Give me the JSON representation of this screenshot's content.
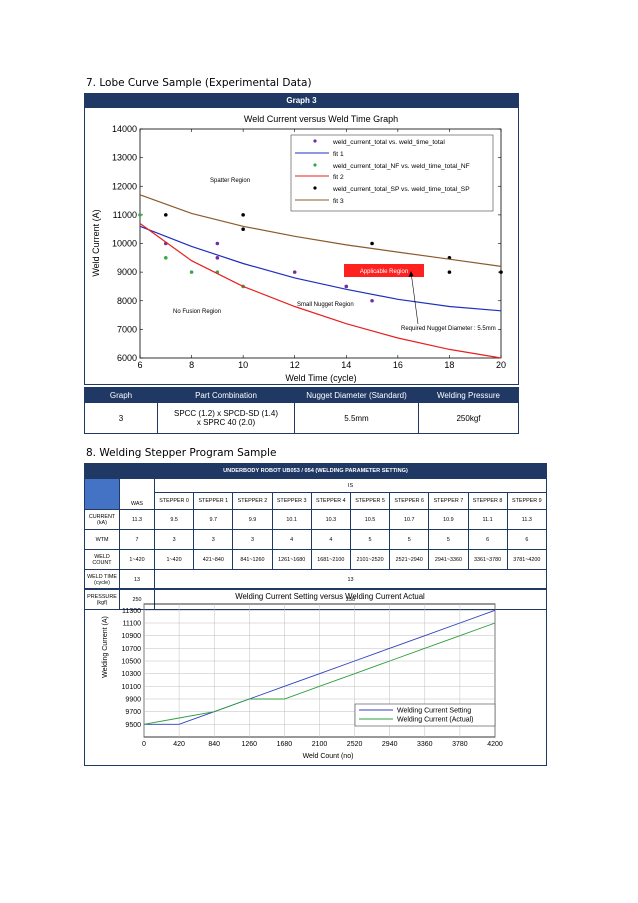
{
  "section7": {
    "title": "7.   Lobe Curve Sample (Experimental Data)"
  },
  "graph3": {
    "header": "Graph 3",
    "title": "Weld Current versus Weld Time Graph",
    "xlabel": "Weld Time (cycle)",
    "ylabel": "Weld Current (A)",
    "legend": {
      "e1a": "weld_current_total vs. weld_time_total",
      "e1b": "fit 1",
      "e2a": "weld_current_total_NF vs. weld_time_total_NF",
      "e2b": "fit 2",
      "e3a": "weld_current_total_SP vs. weld_time_total_SP",
      "e3b": "fit 3"
    },
    "annotations": {
      "spatter": "Spatter Region",
      "applicable": "Applicable Region",
      "small_nugget": "Small Nugget Region",
      "no_fusion": "No Fusion Region",
      "required": "Required Nugget Diameter : 5.5mm"
    }
  },
  "graph3_table": {
    "headers": [
      "Graph",
      "Part Combination",
      "Nugget Diameter (Standard)",
      "Welding Pressure"
    ],
    "graph": "3",
    "part_line1": "SPCC (1.2) x SPCD-SD (1.4)",
    "part_line2": "x SPRC 40 (2.0)",
    "nugget": "5.5mm",
    "pressure": "250kgf"
  },
  "section8": {
    "title": "8.   Welding Stepper Program Sample"
  },
  "stepper": {
    "title": "UNDERBODY ROBOT UB053 / 054 (WELDING PARAMETER SETTING)",
    "was": "WAS",
    "is": "IS",
    "steppers": [
      "STEPPER 0",
      "STEPPER 1",
      "STEPPER 2",
      "STEPPER 3",
      "STEPPER 4",
      "STEPPER 5",
      "STEPPER 6",
      "STEPPER 7",
      "STEPPER 8",
      "STEPPER 9"
    ],
    "current_label_1": "CURRENT",
    "current_label_2": "(kA)",
    "current_was": "11.3",
    "current": [
      "9.5",
      "9.7",
      "9.9",
      "10.1",
      "10.3",
      "10.5",
      "10.7",
      "10.9",
      "11.1",
      "11.3"
    ],
    "wtm_label": "WTM",
    "wtm_was": "7",
    "wtm": [
      "3",
      "3",
      "3",
      "4",
      "4",
      "5",
      "5",
      "5",
      "6",
      "6"
    ],
    "weldcount_label": "WELD COUNT",
    "weldcount_was": "1~420",
    "weldcount": [
      "1~420",
      "421~840",
      "841~1260",
      "1261~1680",
      "1681~2100",
      "2101~2520",
      "2521~2940",
      "2941~3360",
      "3361~3780",
      "3781~4200"
    ],
    "weldtime_label_1": "WELD TIME",
    "weldtime_label_2": "(cycle)",
    "weldtime_was": "13",
    "weldtime_is": "13",
    "pressure_label_1": "PRESSURE",
    "pressure_label_2": "(kgf)",
    "pressure_was": "250",
    "pressure_is": "250"
  },
  "chart_data": [
    {
      "type": "scatter",
      "title": "Weld Current versus Weld Time Graph",
      "xlabel": "Weld Time (cycle)",
      "ylabel": "Weld Current (A)",
      "xlim": [
        6,
        20
      ],
      "ylim": [
        6000,
        14000
      ],
      "xticks": [
        6,
        8,
        10,
        12,
        14,
        16,
        18,
        20
      ],
      "yticks": [
        6000,
        7000,
        8000,
        9000,
        10000,
        11000,
        12000,
        13000,
        14000
      ],
      "grid": false,
      "legend_position": "top-right",
      "series": [
        {
          "name": "weld_current_total vs. weld_time_total",
          "kind": "points",
          "color": "#7030a0",
          "points": [
            [
              7,
              10000
            ],
            [
              9,
              10000
            ],
            [
              9,
              9500
            ],
            [
              12,
              9000
            ],
            [
              14,
              8500
            ],
            [
              15,
              8000
            ]
          ]
        },
        {
          "name": "fit 1",
          "kind": "line",
          "color": "#1f2fbf",
          "points": [
            [
              6,
              10600
            ],
            [
              8,
              9900
            ],
            [
              10,
              9300
            ],
            [
              12,
              8800
            ],
            [
              14,
              8400
            ],
            [
              16,
              8050
            ],
            [
              18,
              7800
            ],
            [
              20,
              7650
            ]
          ]
        },
        {
          "name": "weld_current_total_NF vs. weld_time_total_NF",
          "kind": "points",
          "color": "#3aa84a",
          "points": [
            [
              6,
              11000
            ],
            [
              7,
              9500
            ],
            [
              8,
              9000
            ],
            [
              9,
              9000
            ],
            [
              10,
              8500
            ]
          ]
        },
        {
          "name": "fit 2",
          "kind": "line",
          "color": "#e82020",
          "points": [
            [
              6,
              10700
            ],
            [
              8,
              9400
            ],
            [
              10,
              8500
            ],
            [
              12,
              7800
            ],
            [
              14,
              7200
            ],
            [
              16,
              6700
            ],
            [
              18,
              6300
            ],
            [
              20,
              6000
            ]
          ]
        },
        {
          "name": "weld_current_total_SP vs. weld_time_total_SP",
          "kind": "points",
          "color": "#000000",
          "points": [
            [
              7,
              11000
            ],
            [
              10,
              11000
            ],
            [
              10,
              10500
            ],
            [
              15,
              10000
            ],
            [
              18,
              9500
            ],
            [
              18,
              9000
            ],
            [
              20,
              9000
            ]
          ]
        },
        {
          "name": "fit 3",
          "kind": "line",
          "color": "#8b5a2b",
          "points": [
            [
              6,
              11700
            ],
            [
              8,
              11050
            ],
            [
              10,
              10600
            ],
            [
              12,
              10250
            ],
            [
              14,
              9950
            ],
            [
              16,
              9700
            ],
            [
              18,
              9450
            ],
            [
              20,
              9200
            ]
          ]
        }
      ]
    },
    {
      "type": "line",
      "title": "Welding Current Setting versus Welding Current Actual",
      "xlabel": "Weld Count (no)",
      "ylabel": "Welding Current (A)",
      "xlim": [
        0,
        4200
      ],
      "ylim": [
        9300,
        11400
      ],
      "xticks": [
        0,
        420,
        840,
        1260,
        1680,
        2100,
        2520,
        2940,
        3360,
        3780,
        4200
      ],
      "yticks": [
        9500,
        9700,
        9900,
        10100,
        10300,
        10500,
        10700,
        10900,
        11100,
        11300
      ],
      "grid": true,
      "legend_position": "bottom-right",
      "series": [
        {
          "name": "Welding Current Setting",
          "color": "#3040c0",
          "points": [
            [
              0,
              9500
            ],
            [
              420,
              9500
            ],
            [
              840,
              9700
            ],
            [
              1260,
              9900
            ],
            [
              1680,
              10100
            ],
            [
              2100,
              10300
            ],
            [
              2520,
              10500
            ],
            [
              2940,
              10700
            ],
            [
              3360,
              10900
            ],
            [
              3780,
              11100
            ],
            [
              4200,
              11300
            ]
          ]
        },
        {
          "name": "Welding Current (Actual)",
          "color": "#2e9e3e",
          "points": [
            [
              0,
              9500
            ],
            [
              420,
              9600
            ],
            [
              840,
              9700
            ],
            [
              1260,
              9900
            ],
            [
              1680,
              9900
            ],
            [
              2100,
              10100
            ],
            [
              2520,
              10300
            ],
            [
              2940,
              10500
            ],
            [
              3360,
              10700
            ],
            [
              3780,
              10900
            ],
            [
              4200,
              11100
            ]
          ]
        }
      ]
    }
  ]
}
